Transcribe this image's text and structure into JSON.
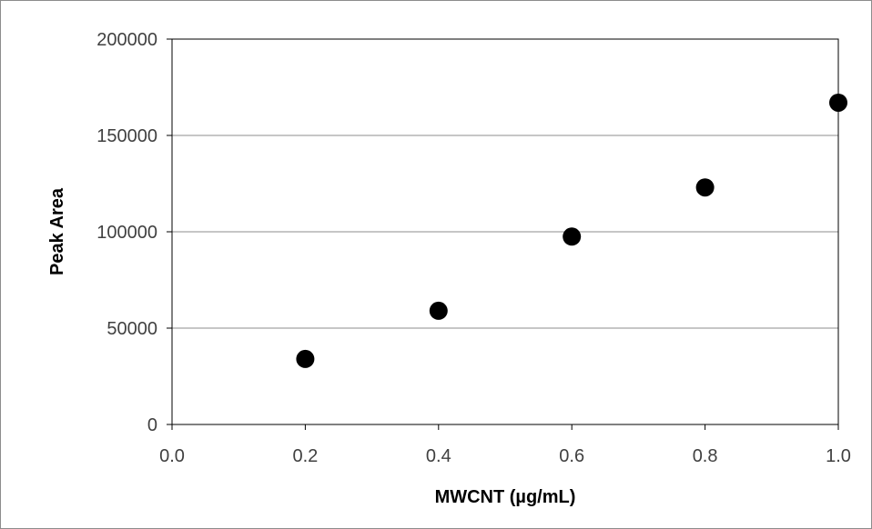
{
  "chart_data": {
    "type": "scatter",
    "title": "",
    "xlabel": "MWCNT (µg/mL)",
    "ylabel": "Peak Area",
    "xlim": [
      0.0,
      1.0
    ],
    "ylim": [
      0,
      200000
    ],
    "x_ticks": [
      "0.0",
      "0.2",
      "0.4",
      "0.6",
      "0.8",
      "1.0"
    ],
    "y_ticks": [
      "0",
      "50000",
      "100000",
      "150000",
      "200000"
    ],
    "grid": "horizontal",
    "legend": "none",
    "marker_color": "#000000",
    "series": [
      {
        "x": [
          0.2,
          0.4,
          0.6,
          0.8,
          1.0
        ],
        "y": [
          34000,
          59000,
          97500,
          123000,
          167000
        ]
      }
    ]
  }
}
